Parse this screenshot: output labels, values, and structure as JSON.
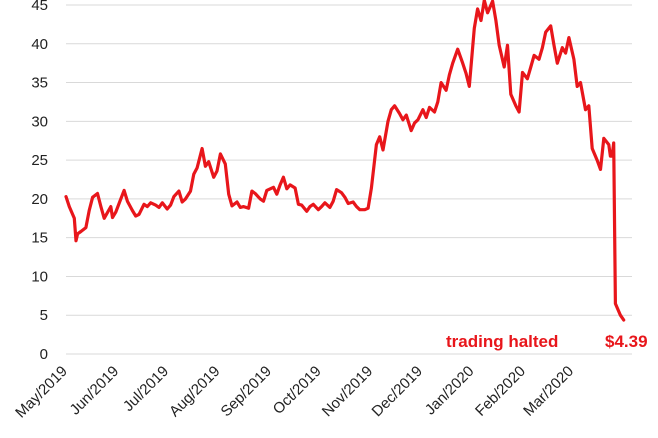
{
  "chart_data": {
    "type": "line",
    "title": "",
    "xlabel": "",
    "ylabel": "",
    "ylim": [
      0,
      45
    ],
    "yticks": [
      0,
      5,
      10,
      15,
      20,
      25,
      30,
      35,
      40,
      45
    ],
    "grid": true,
    "x_tick_labels": [
      "May/2019",
      "Jun/2019",
      "Jul/2019",
      "Aug/2019",
      "Sep/2019",
      "Oct/2019",
      "Nov/2019",
      "Dec/2019",
      "Jan/2020",
      "Feb/2020",
      "Mar/2020"
    ],
    "series": [
      {
        "color": "#e8161b",
        "x": [
          "2019-05-01",
          "2019-05-03",
          "2019-05-06",
          "2019-05-07",
          "2019-05-08",
          "2019-05-10",
          "2019-05-13",
          "2019-05-15",
          "2019-05-17",
          "2019-05-20",
          "2019-05-22",
          "2019-05-24",
          "2019-05-28",
          "2019-05-29",
          "2019-05-31",
          "2019-06-03",
          "2019-06-05",
          "2019-06-07",
          "2019-06-10",
          "2019-06-12",
          "2019-06-14",
          "2019-06-17",
          "2019-06-19",
          "2019-06-21",
          "2019-06-24",
          "2019-06-26",
          "2019-06-28",
          "2019-07-01",
          "2019-07-03",
          "2019-07-05",
          "2019-07-08",
          "2019-07-10",
          "2019-07-12",
          "2019-07-15",
          "2019-07-17",
          "2019-07-19",
          "2019-07-22",
          "2019-07-24",
          "2019-07-26",
          "2019-07-29",
          "2019-07-31",
          "2019-08-02",
          "2019-08-05",
          "2019-08-07",
          "2019-08-09",
          "2019-08-12",
          "2019-08-14",
          "2019-08-16",
          "2019-08-19",
          "2019-08-21",
          "2019-08-23",
          "2019-08-26",
          "2019-08-28",
          "2019-08-30",
          "2019-09-03",
          "2019-09-05",
          "2019-09-07",
          "2019-09-09",
          "2019-09-11",
          "2019-09-13",
          "2019-09-16",
          "2019-09-18",
          "2019-09-20",
          "2019-09-23",
          "2019-09-25",
          "2019-09-27",
          "2019-09-30",
          "2019-10-02",
          "2019-10-04",
          "2019-10-07",
          "2019-10-09",
          "2019-10-11",
          "2019-10-14",
          "2019-10-16",
          "2019-10-18",
          "2019-10-21",
          "2019-10-23",
          "2019-10-25",
          "2019-10-28",
          "2019-10-30",
          "2019-11-01",
          "2019-11-04",
          "2019-11-06",
          "2019-11-08",
          "2019-11-11",
          "2019-11-13",
          "2019-11-15",
          "2019-11-18",
          "2019-11-20",
          "2019-11-22",
          "2019-11-25",
          "2019-11-27",
          "2019-11-29",
          "2019-12-02",
          "2019-12-04",
          "2019-12-06",
          "2019-12-09",
          "2019-12-11",
          "2019-12-13",
          "2019-12-16",
          "2019-12-18",
          "2019-12-20",
          "2019-12-23",
          "2019-12-26",
          "2019-12-28",
          "2019-12-30",
          "2020-01-02",
          "2020-01-04",
          "2020-01-06",
          "2020-01-08",
          "2020-01-10",
          "2020-01-13",
          "2020-01-15",
          "2020-01-17",
          "2020-01-20",
          "2020-01-22",
          "2020-01-24",
          "2020-01-27",
          "2020-01-29",
          "2020-01-31",
          "2020-02-03",
          "2020-02-05",
          "2020-02-07",
          "2020-02-10",
          "2020-02-12",
          "2020-02-14",
          "2020-02-17",
          "2020-02-19",
          "2020-02-21",
          "2020-02-24",
          "2020-02-26",
          "2020-02-28",
          "2020-03-02",
          "2020-03-04",
          "2020-03-06",
          "2020-03-09",
          "2020-03-11",
          "2020-03-13",
          "2020-03-16",
          "2020-03-18",
          "2020-03-20",
          "2020-03-23",
          "2020-03-24",
          "2020-03-25",
          "2020-03-26",
          "2020-03-27",
          "2020-03-30",
          "2020-04-01"
        ],
        "values": [
          20.3,
          19.0,
          17.5,
          14.6,
          15.5,
          15.8,
          16.3,
          18.5,
          20.2,
          20.7,
          19.0,
          17.5,
          19.0,
          17.6,
          18.3,
          20.0,
          21.1,
          19.7,
          18.5,
          17.8,
          18.0,
          19.3,
          19.0,
          19.5,
          19.2,
          18.9,
          19.5,
          18.7,
          19.2,
          20.3,
          21.0,
          19.6,
          20.0,
          21.0,
          23.2,
          24.0,
          26.5,
          24.2,
          24.8,
          22.8,
          23.6,
          25.8,
          24.5,
          20.6,
          19.1,
          19.6,
          18.9,
          19.0,
          18.8,
          21.0,
          20.7,
          20.0,
          19.7,
          21.1,
          21.5,
          20.6,
          21.8,
          22.8,
          21.3,
          21.8,
          21.4,
          19.3,
          19.2,
          18.4,
          19.0,
          19.3,
          18.6,
          19.0,
          19.5,
          18.9,
          19.7,
          21.2,
          20.8,
          20.2,
          19.4,
          19.6,
          19.0,
          18.6,
          18.6,
          18.8,
          21.4,
          27.0,
          28.0,
          26.3,
          30.0,
          31.5,
          32.0,
          31.0,
          30.2,
          30.8,
          28.8,
          29.8,
          30.2,
          31.5,
          30.5,
          31.8,
          31.2,
          32.5,
          35.0,
          34.0,
          36.0,
          37.5,
          39.3,
          37.5,
          36.2,
          34.5,
          42.0,
          44.5,
          43.0,
          45.6,
          44.0,
          45.5,
          43.0,
          39.8,
          37.0,
          39.8,
          33.5,
          32.0,
          31.2,
          36.3,
          35.5,
          37.0,
          38.5,
          38.0,
          39.5,
          41.5,
          42.3,
          39.8,
          37.5,
          39.5,
          38.8,
          40.8,
          38.0,
          34.5,
          35.0,
          31.5,
          32.0,
          26.5,
          25.0,
          23.8,
          27.8,
          27.0,
          25.5,
          25.5,
          27.2,
          6.5,
          5.0,
          4.39
        ]
      }
    ],
    "annotations": {
      "halted_label": "trading halted",
      "last_price_label": "$4.39"
    }
  }
}
